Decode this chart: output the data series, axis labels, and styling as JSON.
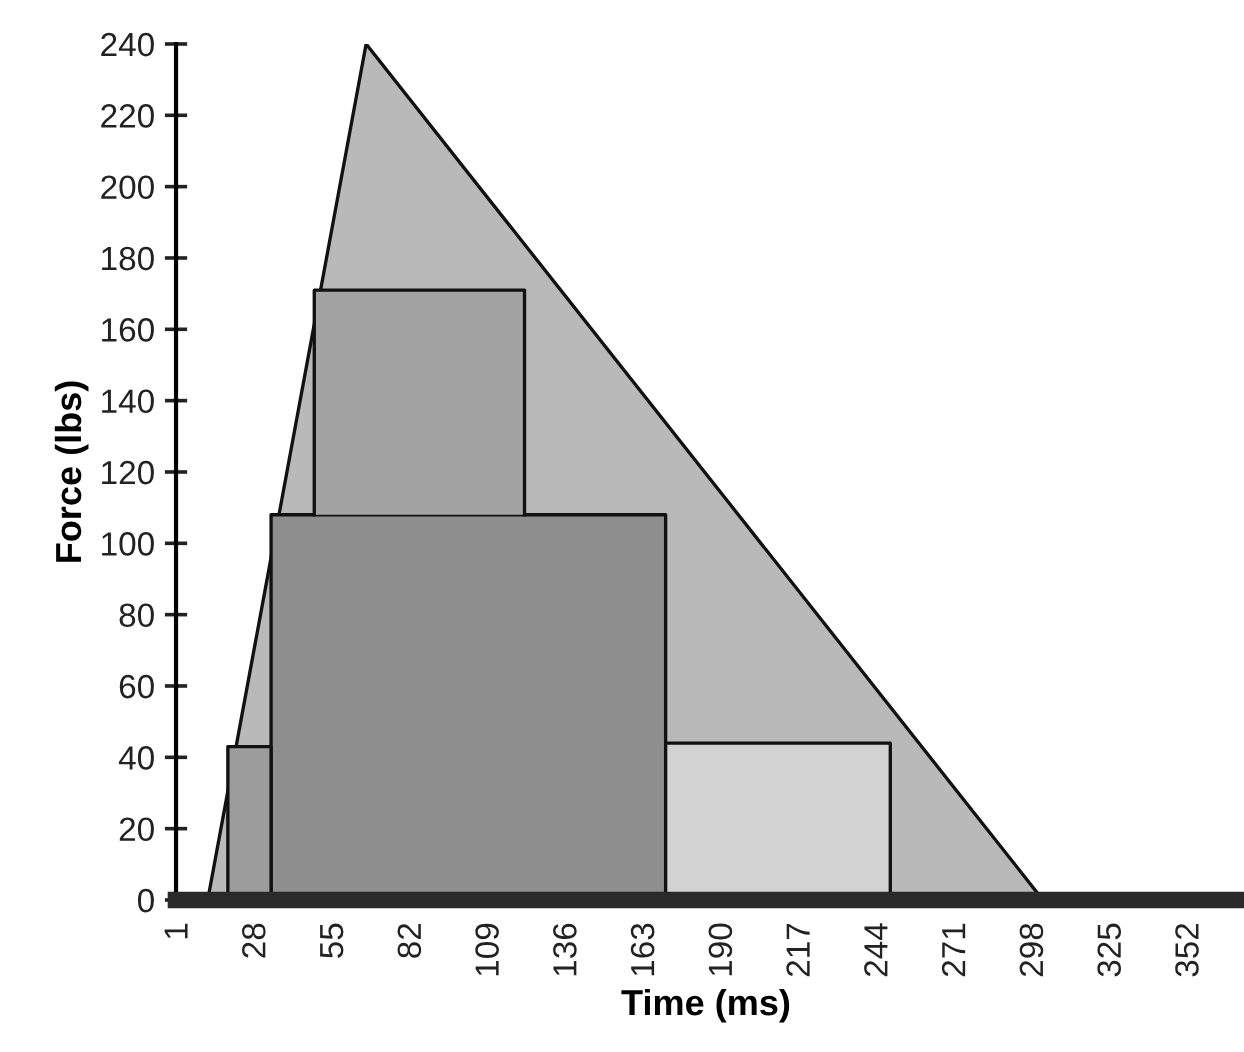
{
  "chart_data": {
    "type": "area",
    "xlabel": "Time (ms)",
    "ylabel": "Force (lbs)",
    "xlim": [
      0,
      368
    ],
    "xticks": [
      1,
      28,
      55,
      82,
      109,
      136,
      163,
      190,
      217,
      244,
      271,
      298,
      325,
      352
    ],
    "ylim": [
      0,
      240
    ],
    "yticks": [
      0,
      20,
      40,
      60,
      80,
      100,
      120,
      140,
      160,
      180,
      200,
      220,
      240
    ],
    "grid": false,
    "series": [
      {
        "color": "#b9b9b9",
        "x": [
          11,
          66,
          301
        ],
        "values": [
          0,
          240,
          0
        ]
      },
      {
        "color": "#8e8e8e",
        "x": [
          33,
          33,
          170,
          170
        ],
        "values": [
          0,
          108,
          108,
          0
        ]
      },
      {
        "color": "#a3a3a3",
        "x": [
          48,
          48,
          121,
          121
        ],
        "values": [
          108,
          171,
          171,
          108
        ]
      },
      {
        "color": "#9c9c9c",
        "x": [
          18,
          18,
          33,
          33
        ],
        "values": [
          0,
          43,
          43,
          0
        ]
      },
      {
        "color": "#d2d2d2",
        "x": [
          170,
          170,
          248,
          248
        ],
        "values": [
          0,
          44,
          44,
          0
        ]
      }
    ]
  }
}
